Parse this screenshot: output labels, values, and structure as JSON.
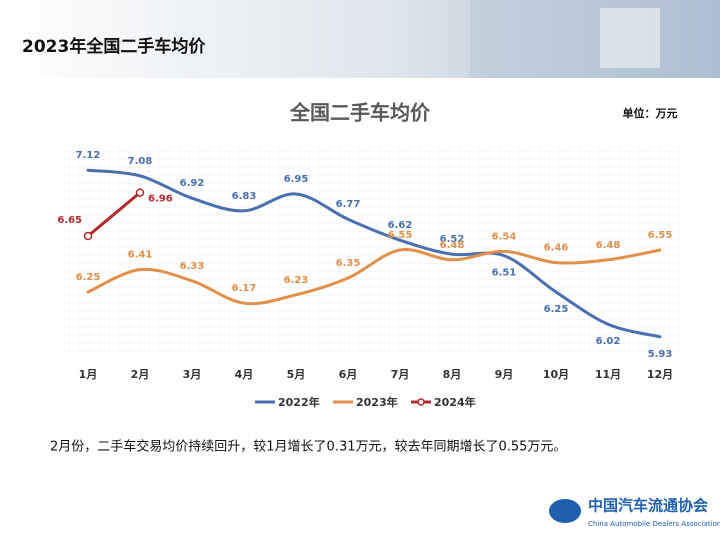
{
  "header": {
    "title": "2023年全国二手车均价"
  },
  "chart_data": {
    "type": "line",
    "title": "全国二手车均价",
    "unit": "单位：万元",
    "categories": [
      "1月",
      "2月",
      "3月",
      "4月",
      "5月",
      "6月",
      "7月",
      "8月",
      "9月",
      "10月",
      "11月",
      "12月"
    ],
    "series": [
      {
        "name": "2022年",
        "color": "#4a6fae",
        "values": [
          7.12,
          7.08,
          6.92,
          6.83,
          6.95,
          6.77,
          6.62,
          6.52,
          6.51,
          6.25,
          6.02,
          5.93
        ]
      },
      {
        "name": "2023年",
        "color": "#e0904a",
        "values": [
          6.25,
          6.41,
          6.33,
          6.17,
          6.23,
          6.35,
          6.55,
          6.48,
          6.54,
          6.46,
          6.48,
          6.55
        ]
      },
      {
        "name": "2024年",
        "color": "#b22a2e",
        "markers": true,
        "values": [
          6.65,
          6.96,
          null,
          null,
          null,
          null,
          null,
          null,
          null,
          null,
          null,
          null
        ]
      }
    ],
    "ylim": [
      5.8,
      7.3
    ],
    "legend": "bottom"
  },
  "caption": "2月份，二手车交易均价持续回升，较1月增长了0.31万元，较去年同期增长了0.55万元。",
  "logo": {
    "name": "中国汽车流通协会",
    "english": "China Automobile Dealers Association"
  }
}
